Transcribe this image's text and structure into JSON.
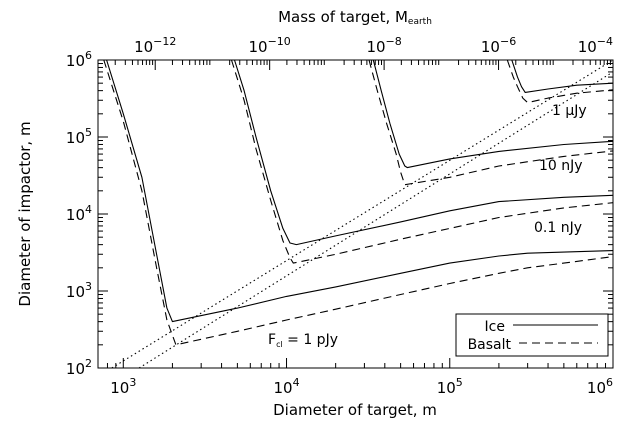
{
  "chart_data": {
    "type": "line",
    "xscale": "log",
    "yscale": "log",
    "xlim": [
      700,
      1000000
    ],
    "ylim": [
      100,
      1000000
    ],
    "top_axis_lim": [
      1e-13,
      0.0001
    ],
    "grid": false,
    "xlabel": "Diameter of target, m",
    "ylabel": "Diameter of impactor, m",
    "top_axis_label": "Mass of target, M",
    "top_axis_label_sub": "earth",
    "x_ticks": [
      {
        "value": 1000,
        "base": "10",
        "exp": "3"
      },
      {
        "value": 10000,
        "base": "10",
        "exp": "4"
      },
      {
        "value": 100000,
        "base": "10",
        "exp": "5"
      },
      {
        "value": 1000000,
        "base": "10",
        "exp": "6"
      }
    ],
    "y_ticks": [
      {
        "value": 100,
        "base": "10",
        "exp": "2"
      },
      {
        "value": 1000,
        "base": "10",
        "exp": "3"
      },
      {
        "value": 10000,
        "base": "10",
        "exp": "4"
      },
      {
        "value": 100000,
        "base": "10",
        "exp": "5"
      },
      {
        "value": 1000000,
        "base": "10",
        "exp": "6"
      }
    ],
    "top_ticks": [
      {
        "value": 1e-12,
        "base": "10",
        "exp": "−12"
      },
      {
        "value": 1e-10,
        "base": "10",
        "exp": "−10"
      },
      {
        "value": 1e-08,
        "base": "10",
        "exp": "−8"
      },
      {
        "value": 1e-06,
        "base": "10",
        "exp": "−6"
      },
      {
        "value": 0.0001,
        "base": "10",
        "exp": "−4"
      }
    ],
    "annotations": {
      "a1": {
        "pre": "F",
        "sub": "cl",
        "post": " = 1 pJy"
      },
      "a2": "0.1 nJy",
      "a3": "10 nJy",
      "a4": "1 μJy"
    },
    "legend": {
      "position": "bottom-right",
      "entries": [
        {
          "label": "Ice",
          "style": "solid"
        },
        {
          "label": "Basalt",
          "style": "dashed"
        }
      ]
    },
    "series": [
      {
        "material": "Ice",
        "flux": "1 pJy",
        "style": "solid",
        "points": [
          [
            790,
            1000000
          ],
          [
            1000,
            200000
          ],
          [
            1300,
            30000
          ],
          [
            1600,
            3000
          ],
          [
            1850,
            600
          ],
          [
            2000,
            400
          ],
          [
            5000,
            600
          ],
          [
            10000,
            850
          ],
          [
            20000,
            1130
          ],
          [
            50000,
            1700
          ],
          [
            100000,
            2300
          ],
          [
            200000,
            2850
          ],
          [
            300000,
            3100
          ],
          [
            500000,
            3200
          ],
          [
            1000000,
            3350
          ]
        ]
      },
      {
        "material": "Basalt",
        "flux": "1 pJy",
        "style": "dashed",
        "points": [
          [
            760,
            1000000
          ],
          [
            1000,
            160000
          ],
          [
            1300,
            20000
          ],
          [
            1600,
            2000
          ],
          [
            1850,
            420
          ],
          [
            2100,
            200
          ],
          [
            5000,
            300
          ],
          [
            10000,
            420
          ],
          [
            20000,
            580
          ],
          [
            50000,
            900
          ],
          [
            100000,
            1250
          ],
          [
            200000,
            1700
          ],
          [
            300000,
            2000
          ],
          [
            500000,
            2300
          ],
          [
            1000000,
            2800
          ]
        ]
      },
      {
        "material": "Ice",
        "flux": "0.1 nJy",
        "style": "solid",
        "points": [
          [
            4800,
            1000000
          ],
          [
            5500,
            400000
          ],
          [
            6500,
            100000
          ],
          [
            8000,
            20000
          ],
          [
            9500,
            6500
          ],
          [
            10500,
            4200
          ],
          [
            11500,
            4000
          ],
          [
            20000,
            5200
          ],
          [
            50000,
            7900
          ],
          [
            100000,
            11000
          ],
          [
            200000,
            14500
          ],
          [
            500000,
            16500
          ],
          [
            1000000,
            17500
          ]
        ]
      },
      {
        "material": "Basalt",
        "flux": "0.1 nJy",
        "style": "dashed",
        "points": [
          [
            4600,
            1000000
          ],
          [
            5500,
            300000
          ],
          [
            6500,
            70000
          ],
          [
            8000,
            15000
          ],
          [
            9500,
            4500
          ],
          [
            10500,
            2700
          ],
          [
            11000,
            2300
          ],
          [
            20000,
            3000
          ],
          [
            50000,
            4700
          ],
          [
            100000,
            6500
          ],
          [
            200000,
            9000
          ],
          [
            500000,
            12000
          ],
          [
            1000000,
            14000
          ]
        ]
      },
      {
        "material": "Ice",
        "flux": "10 nJy",
        "style": "solid",
        "points": [
          [
            34000,
            1000000
          ],
          [
            38000,
            400000
          ],
          [
            43000,
            150000
          ],
          [
            49000,
            60000
          ],
          [
            53000,
            42000
          ],
          [
            55000,
            40000
          ],
          [
            100000,
            52000
          ],
          [
            200000,
            65000
          ],
          [
            500000,
            80000
          ],
          [
            1000000,
            88000
          ]
        ]
      },
      {
        "material": "Basalt",
        "flux": "10 nJy",
        "style": "dashed",
        "points": [
          [
            32000,
            1000000
          ],
          [
            36000,
            400000
          ],
          [
            41000,
            150000
          ],
          [
            47000,
            60000
          ],
          [
            50000,
            35000
          ],
          [
            53000,
            24000
          ],
          [
            100000,
            30000
          ],
          [
            200000,
            42000
          ],
          [
            500000,
            56000
          ],
          [
            1000000,
            66000
          ]
        ]
      },
      {
        "material": "Ice",
        "flux": "1 μJy",
        "style": "solid",
        "points": [
          [
            240000,
            1000000
          ],
          [
            260000,
            600000
          ],
          [
            275000,
            450000
          ],
          [
            290000,
            380000
          ],
          [
            400000,
            420000
          ],
          [
            600000,
            470000
          ],
          [
            1000000,
            500000
          ]
        ]
      },
      {
        "material": "Basalt",
        "flux": "1 μJy",
        "style": "dashed",
        "points": [
          [
            225000,
            1000000
          ],
          [
            245000,
            600000
          ],
          [
            260000,
            450000
          ],
          [
            280000,
            320000
          ],
          [
            300000,
            280000
          ],
          [
            400000,
            320000
          ],
          [
            600000,
            370000
          ],
          [
            1000000,
            410000
          ]
        ]
      },
      {
        "material": "",
        "flux": "",
        "style": "dotted",
        "points": [
          [
            850,
            100
          ],
          [
            1000000,
            1000000
          ]
        ]
      },
      {
        "material": "",
        "flux": "",
        "style": "dotted",
        "points": [
          [
            1250,
            100
          ],
          [
            1000000,
            700000
          ]
        ]
      }
    ]
  }
}
